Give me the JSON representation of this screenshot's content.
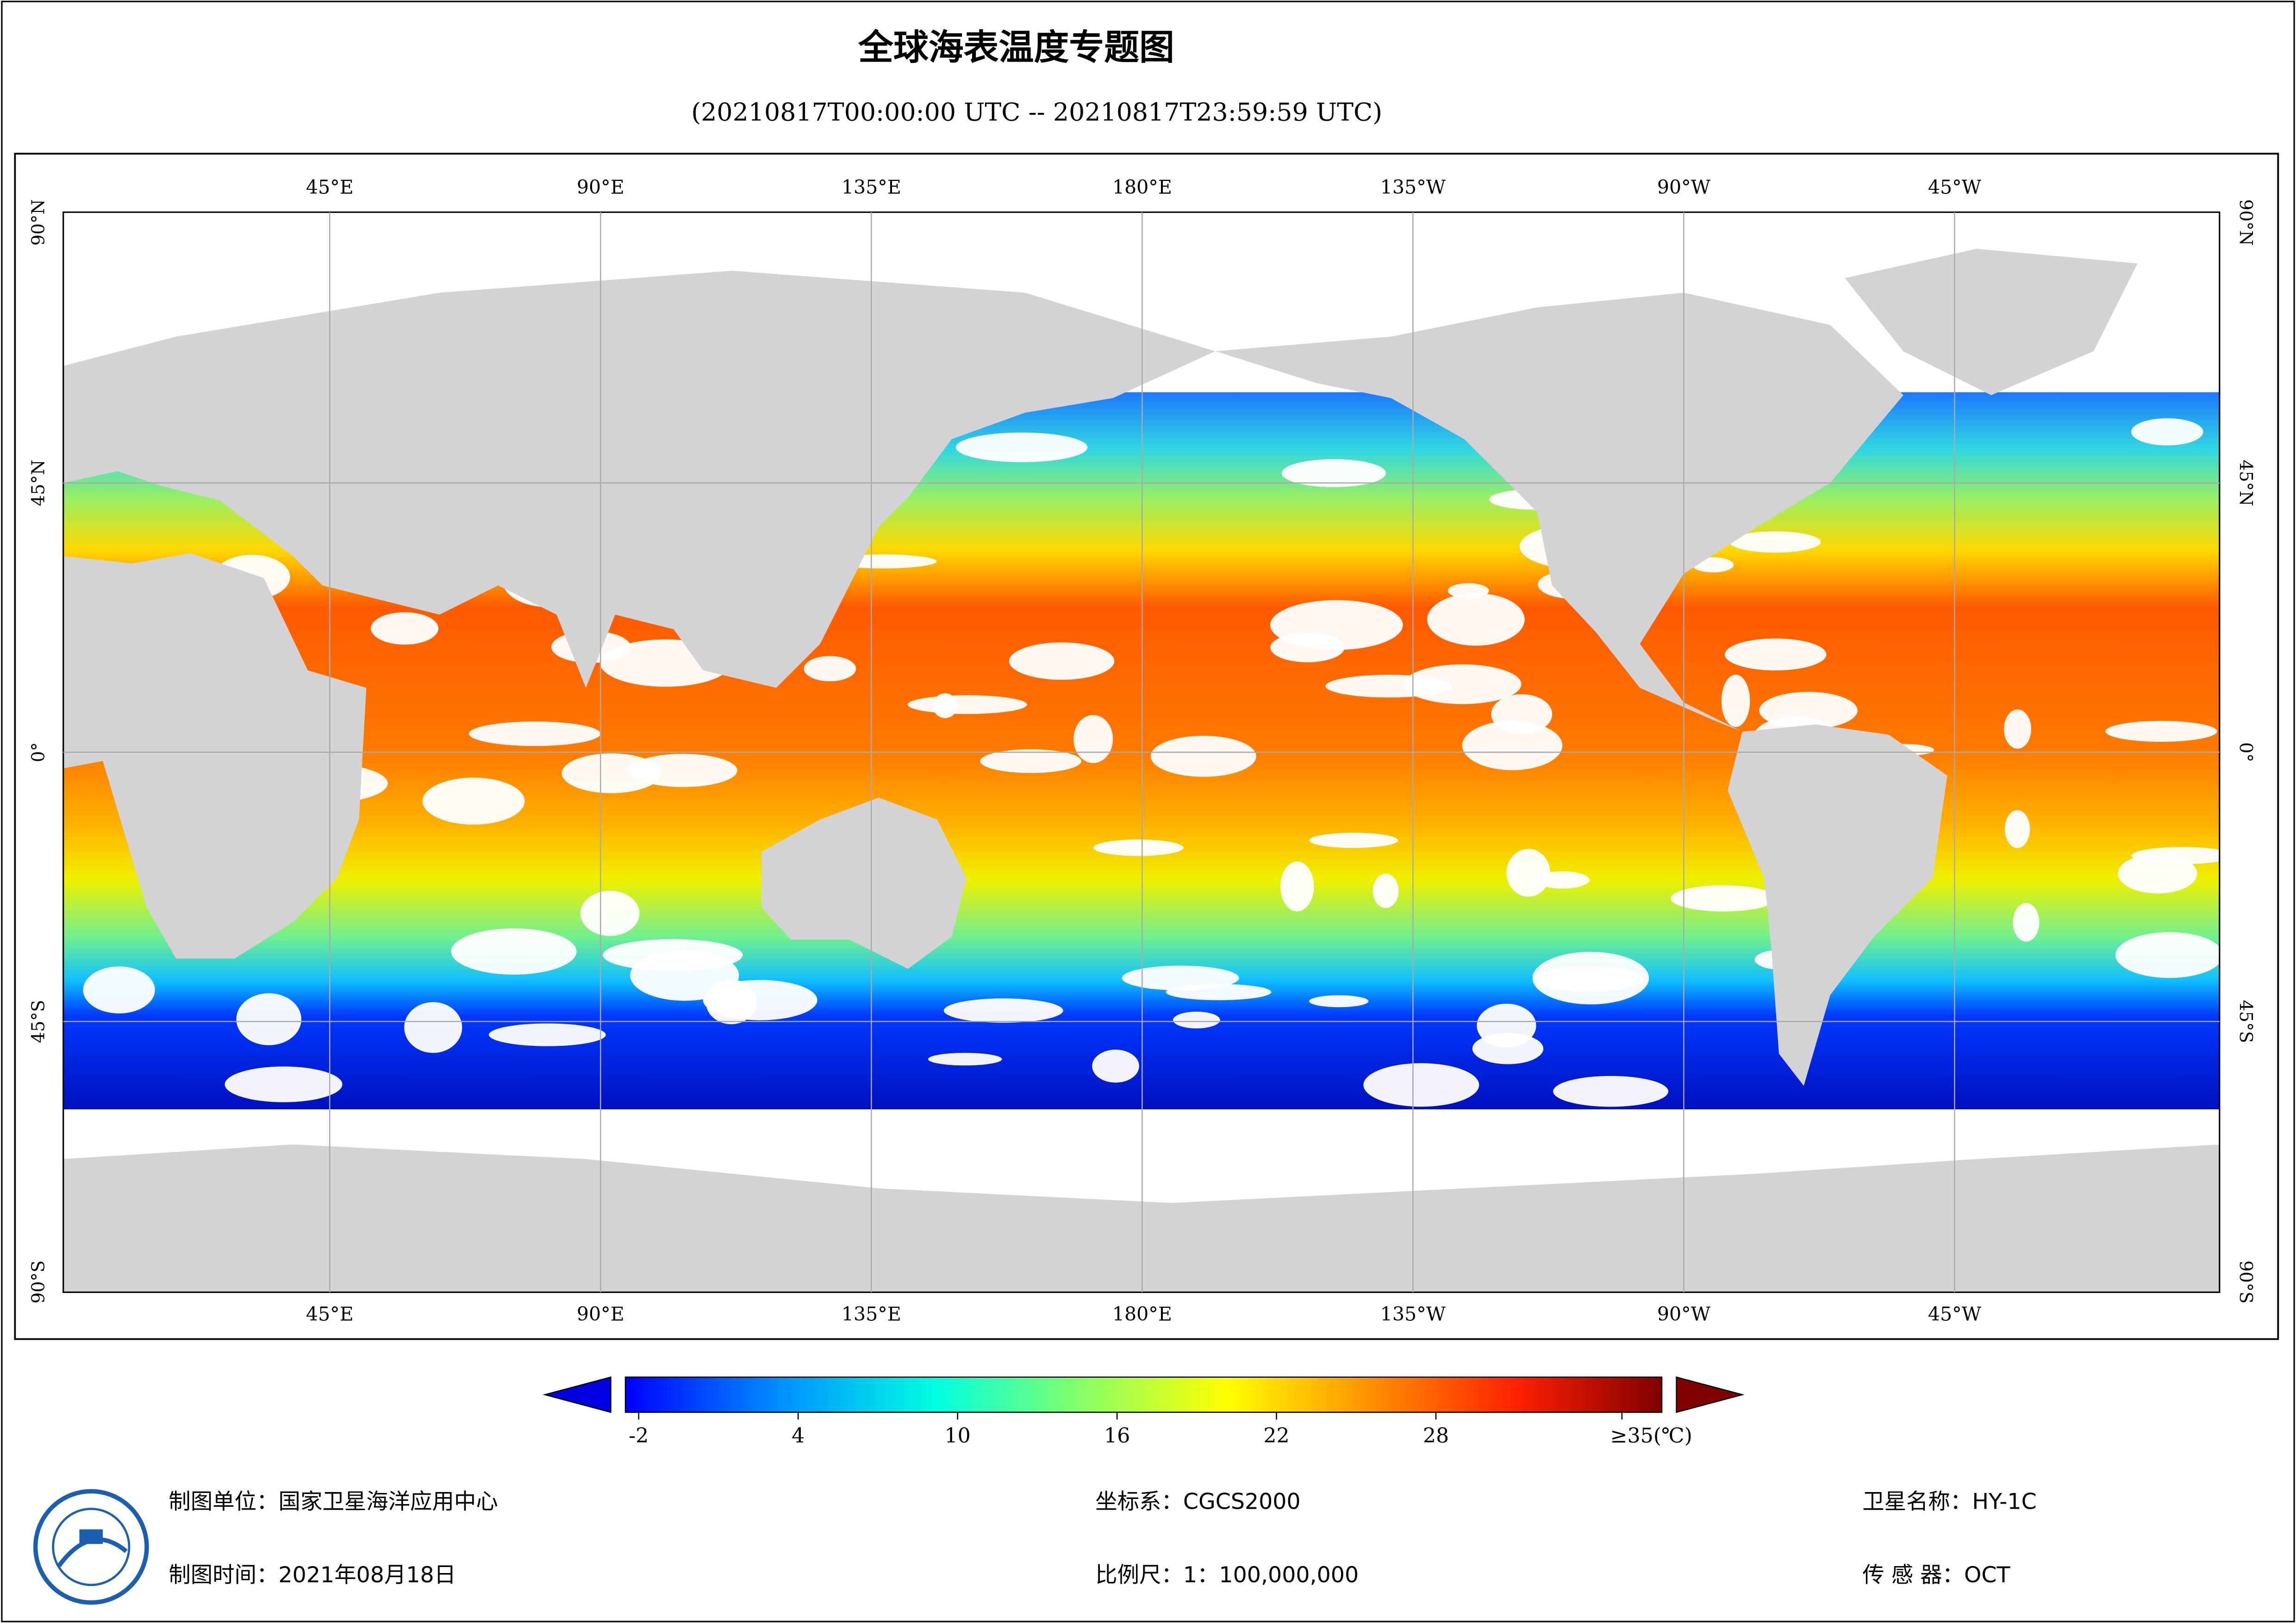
{
  "header": {
    "title": "全球海表温度专题图",
    "subtitle": "(20210817T00:00:00 UTC -- 20210817T23:59:59 UTC)"
  },
  "map": {
    "lon_labels": [
      "45°E",
      "90°E",
      "135°E",
      "180°E",
      "135°W",
      "90°W",
      "45°W"
    ],
    "lat_labels": [
      "90°N",
      "45°N",
      "0°",
      "45°S",
      "90°S"
    ]
  },
  "colorbar": {
    "lim": [
      -2.5,
      36.5
    ],
    "ticks": [
      -2,
      4,
      10,
      16,
      22,
      28,
      {
        "value": 35,
        "label": "≥35(℃)"
      }
    ]
  },
  "footer": {
    "org": "制图单位：国家卫星海洋应用中心",
    "date": "制图时间：2021年08月18日",
    "crs": "坐标系：CGCS2000",
    "scale": "比例尺：1：100,000,000",
    "satellite": "卫星名称：HY-1C",
    "sensor": "传 感 器：OCT"
  }
}
